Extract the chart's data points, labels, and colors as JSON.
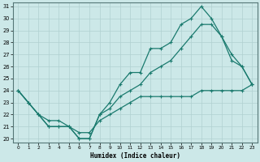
{
  "xlabel": "Humidex (Indice chaleur)",
  "bg_color": "#cce8e8",
  "line_color": "#1a7a6e",
  "grid_color": "#b0d0d0",
  "xlim": [
    -0.5,
    23.5
  ],
  "ylim": [
    19.7,
    31.3
  ],
  "xticks": [
    0,
    1,
    2,
    3,
    4,
    5,
    6,
    7,
    8,
    9,
    10,
    11,
    12,
    13,
    14,
    15,
    16,
    17,
    18,
    19,
    20,
    21,
    22,
    23
  ],
  "yticks": [
    20,
    21,
    22,
    23,
    24,
    25,
    26,
    27,
    28,
    29,
    30,
    31
  ],
  "line1_x": [
    0,
    1,
    2,
    3,
    4,
    5,
    6,
    7,
    8,
    9,
    10,
    11,
    12,
    13,
    14,
    15,
    16,
    17,
    18,
    19,
    20,
    21,
    22,
    23
  ],
  "line1_y": [
    24,
    23,
    22,
    21.5,
    21.5,
    21,
    20,
    20.0,
    22,
    23,
    24.5,
    25.5,
    25.5,
    27.5,
    27.5,
    28,
    29.5,
    30,
    31,
    30,
    28.5,
    26.5,
    26,
    24.5
  ],
  "line2_x": [
    0,
    1,
    2,
    3,
    4,
    5,
    6,
    7,
    8,
    9,
    10,
    11,
    12,
    13,
    14,
    15,
    16,
    17,
    18,
    19,
    20,
    21,
    22,
    23
  ],
  "line2_y": [
    24,
    23,
    22,
    21,
    21,
    21,
    20.5,
    20.5,
    21.5,
    22,
    22.5,
    23,
    23.5,
    23.5,
    23.5,
    23.5,
    23.5,
    23.5,
    24,
    24,
    24,
    24,
    24,
    24.5
  ],
  "line3_x": [
    0,
    1,
    2,
    3,
    4,
    5,
    6,
    7,
    8,
    9,
    10,
    11,
    12,
    13,
    14,
    15,
    16,
    17,
    18,
    19,
    20,
    21,
    22,
    23
  ],
  "line3_y": [
    24,
    23,
    22,
    21,
    21,
    21,
    20,
    20,
    22,
    22.5,
    23.5,
    24,
    24.5,
    25.5,
    26,
    26.5,
    27.5,
    28.5,
    29.5,
    29.5,
    28.5,
    27,
    26,
    24.5
  ]
}
